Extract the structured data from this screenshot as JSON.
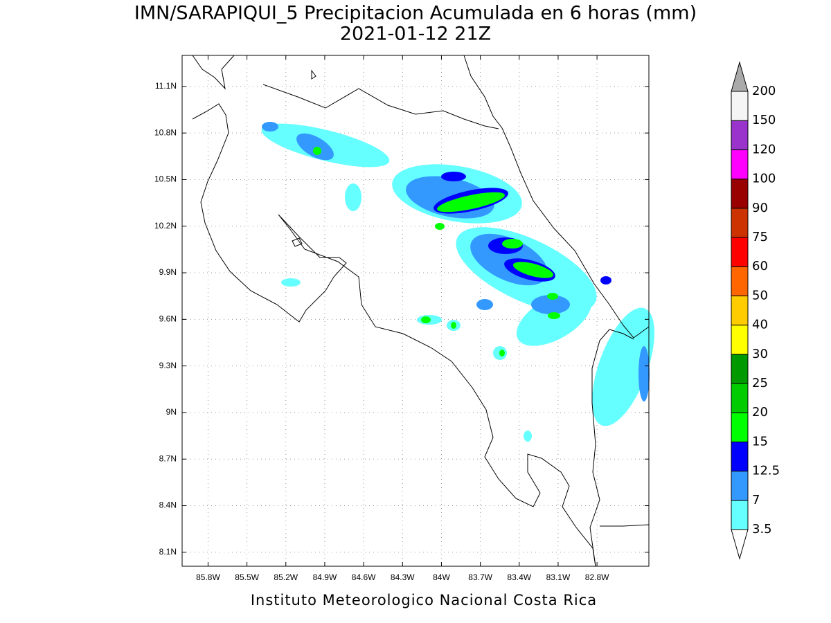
{
  "chart_data": {
    "type": "map",
    "title": "IMN/SARAPIQUI_5 Precipitacion Acumulada en 6 horas (mm)",
    "subtitle": "2021-01-12 21Z",
    "footer": "Instituto Meteorologico Nacional Costa Rica",
    "xlim": [
      -86.0,
      -82.4
    ],
    "ylim": [
      8.01,
      11.3
    ],
    "xticks": [
      {
        "value": -85.8,
        "label": "85.8W"
      },
      {
        "value": -85.5,
        "label": "85.5W"
      },
      {
        "value": -85.2,
        "label": "85.2W"
      },
      {
        "value": -84.9,
        "label": "84.9W"
      },
      {
        "value": -84.6,
        "label": "84.6W"
      },
      {
        "value": -84.3,
        "label": "84.3W"
      },
      {
        "value": -84.0,
        "label": "84W"
      },
      {
        "value": -83.7,
        "label": "83.7W"
      },
      {
        "value": -83.4,
        "label": "83.4W"
      },
      {
        "value": -83.1,
        "label": "83.1W"
      },
      {
        "value": -82.8,
        "label": "82.8W"
      }
    ],
    "yticks": [
      {
        "value": 8.1,
        "label": "8.1N"
      },
      {
        "value": 8.4,
        "label": "8.4N"
      },
      {
        "value": 8.7,
        "label": "8.7N"
      },
      {
        "value": 9.0,
        "label": "9N"
      },
      {
        "value": 9.3,
        "label": "9.3N"
      },
      {
        "value": 9.6,
        "label": "9.6N"
      },
      {
        "value": 9.9,
        "label": "9.9N"
      },
      {
        "value": 10.2,
        "label": "10.2N"
      },
      {
        "value": 10.5,
        "label": "10.5N"
      },
      {
        "value": 10.8,
        "label": "10.8N"
      },
      {
        "value": 11.1,
        "label": "11.1N"
      }
    ],
    "grid": true,
    "levels": [
      3.5,
      7,
      12.5,
      15,
      20,
      25,
      30,
      40,
      50,
      60,
      75,
      90,
      100,
      120,
      150,
      200
    ],
    "level_colors": [
      "#66ffff",
      "#3399ff",
      "#0000ff",
      "#00ff00",
      "#00cc00",
      "#009900",
      "#ffff00",
      "#ffcc00",
      "#ff6600",
      "#ff0000",
      "#cc3300",
      "#990000",
      "#ff00ff",
      "#9933cc",
      "#f5f5f5"
    ],
    "below_color": "#ffffff",
    "above_color": "#aaaaaa"
  }
}
